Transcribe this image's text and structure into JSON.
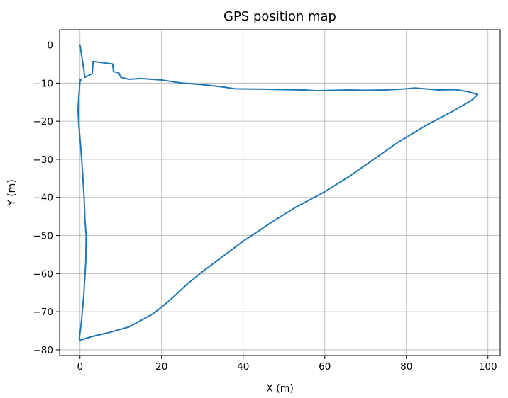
{
  "chart_data": {
    "type": "line",
    "title": "GPS position map",
    "xlabel": "X (m)",
    "ylabel": "Y (m)",
    "xlim": [
      -5,
      103
    ],
    "ylim": [
      -81.5,
      4
    ],
    "xticks": [
      0,
      20,
      40,
      60,
      80,
      100
    ],
    "yticks": [
      0,
      -10,
      -20,
      -30,
      -40,
      -50,
      -60,
      -70,
      -80
    ],
    "xtick_labels": [
      "0",
      "20",
      "40",
      "60",
      "80",
      "100"
    ],
    "ytick_labels": [
      "0",
      "−10",
      "−20",
      "−30",
      "−40",
      "−50",
      "−60",
      "−70",
      "−80"
    ],
    "grid": true,
    "series": [
      {
        "color": "#1f77b4",
        "x": [
          0,
          1.2,
          3,
          3.2,
          8,
          8.2,
          9.5,
          10,
          12,
          15,
          20,
          25,
          30,
          35,
          38,
          45,
          50,
          55,
          58,
          62,
          66,
          70,
          75,
          80,
          82,
          88,
          92,
          95,
          97.5,
          96,
          92,
          85,
          78,
          72,
          66,
          60,
          53,
          47,
          40,
          35,
          30,
          26,
          22,
          18,
          12,
          7,
          3,
          0,
          -0.2,
          0.3,
          0.9,
          1.4,
          1.5,
          1.2,
          1.0,
          0.6,
          0.2,
          -0.3,
          -0.5,
          -0.2,
          0,
          0.2,
          0
        ],
        "y": [
          0,
          -8.5,
          -7.5,
          -4.3,
          -5,
          -7,
          -7.3,
          -8.5,
          -9,
          -8.8,
          -9.2,
          -10,
          -10.4,
          -11,
          -11.5,
          -11.6,
          -11.7,
          -11.8,
          -12,
          -11.9,
          -11.8,
          -11.9,
          -11.8,
          -11.5,
          -11.3,
          -11.8,
          -11.7,
          -12.2,
          -13,
          -14.5,
          -17,
          -21,
          -25.5,
          -30,
          -34.5,
          -38.5,
          -42.5,
          -46.5,
          -51.5,
          -55.5,
          -59.5,
          -63,
          -67,
          -70.5,
          -74,
          -75.5,
          -76.5,
          -77.5,
          -77.2,
          -73,
          -66,
          -57,
          -50,
          -46,
          -40,
          -33,
          -27,
          -21,
          -17,
          -12,
          -9.5,
          -9.2,
          -9
        ]
      }
    ]
  }
}
